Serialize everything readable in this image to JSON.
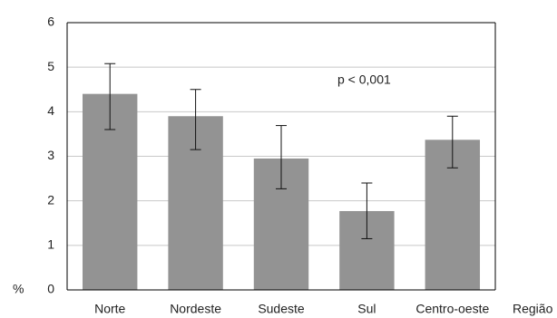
{
  "chart_data": {
    "type": "bar",
    "categories": [
      "Norte",
      "Nordeste",
      "Sudeste",
      "Sul",
      "Centro-oeste"
    ],
    "values": [
      4.4,
      3.9,
      2.95,
      1.77,
      3.37
    ],
    "error_low": [
      3.6,
      3.15,
      2.27,
      1.15,
      2.74
    ],
    "error_high": [
      5.08,
      4.5,
      3.69,
      2.4,
      3.9
    ],
    "xlabel": "Região",
    "ylabel": "%",
    "ylim": [
      0,
      6
    ],
    "yticks": [
      0,
      1,
      2,
      3,
      4,
      5,
      6
    ],
    "grid": true,
    "annotation": "p < 0,001",
    "bar_color": "#939393",
    "grid_color": "#c8c8c8"
  }
}
